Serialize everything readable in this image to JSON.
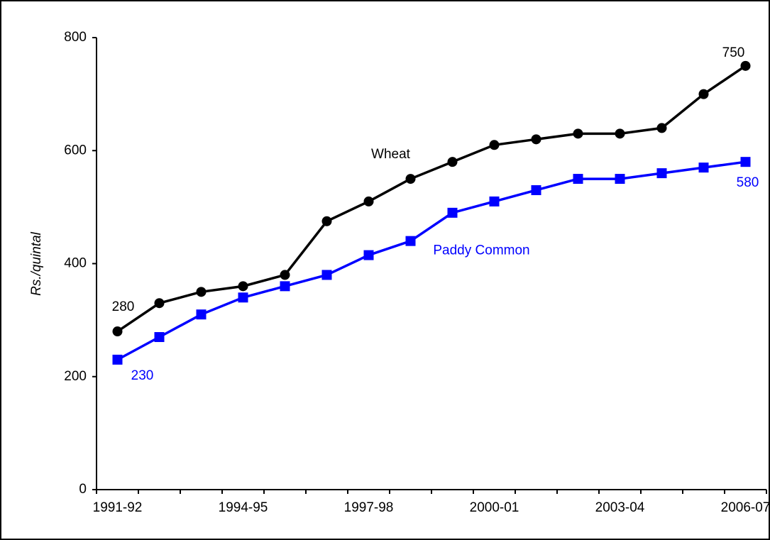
{
  "chart_data": {
    "type": "line",
    "y_label": "Rs./quintal",
    "categories": [
      "1991-92",
      null,
      null,
      "1994-95",
      null,
      null,
      "1997-98",
      null,
      null,
      "2000-01",
      null,
      null,
      "2003-04",
      null,
      null,
      "2006-07"
    ],
    "series": [
      {
        "name": "Wheat",
        "color": "#000000",
        "marker": "circle",
        "values": [
          280,
          330,
          350,
          360,
          380,
          475,
          510,
          550,
          580,
          610,
          620,
          630,
          630,
          640,
          700,
          750
        ]
      },
      {
        "name": "Paddy Common",
        "color": "#0000ff",
        "marker": "square",
        "values": [
          230,
          270,
          310,
          340,
          360,
          380,
          415,
          440,
          490,
          510,
          530,
          550,
          550,
          560,
          570,
          580
        ]
      }
    ],
    "ylim": [
      0,
      800
    ],
    "yticks": [
      0,
      200,
      400,
      600,
      800
    ],
    "grid": false
  }
}
